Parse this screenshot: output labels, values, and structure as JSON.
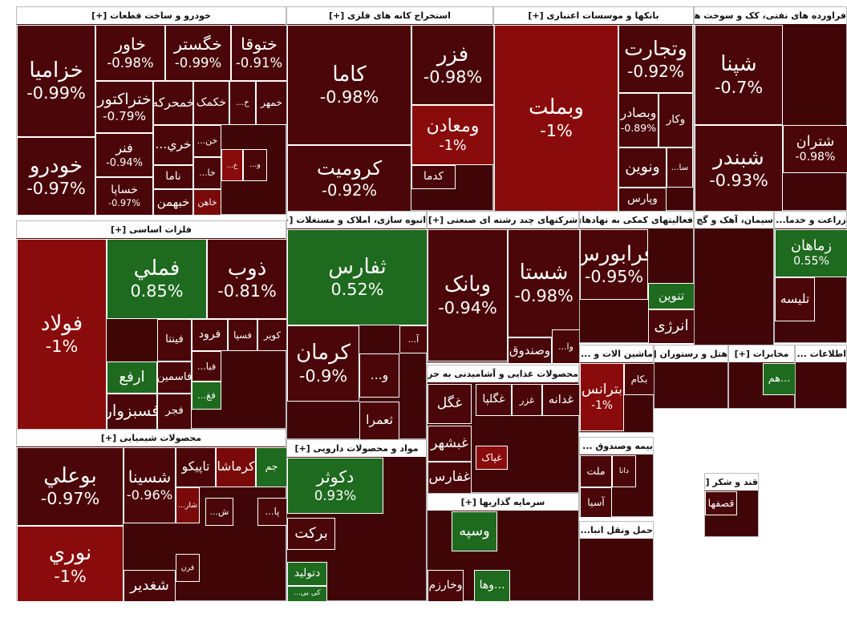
{
  "sectors": [
    {
      "title": "خودرو و ساخت قطعات [+]",
      "tiles": [
        {
          "name": "خزامیا",
          "change": "-0.99%",
          "color": "#4a0608"
        },
        {
          "name": "خودرو",
          "change": "-0.97%",
          "color": "#4a0608"
        },
        {
          "name": "خاور",
          "change": "-0.98%",
          "color": "#4a0608"
        },
        {
          "name": "خگستر",
          "change": "-0.99%",
          "color": "#4a0608"
        },
        {
          "name": "ختوقا",
          "change": "-0.91%",
          "color": "#4a0608"
        },
        {
          "name": "ختراکتور",
          "change": "-0.79%",
          "color": "#4a0608"
        },
        {
          "name": "خمحرکه",
          "color": "#4a0608"
        },
        {
          "name": "خکمک",
          "color": "#4a0608"
        },
        {
          "name": "خ...",
          "color": "#4a0608"
        },
        {
          "name": "خمهر",
          "color": "#4a0608"
        },
        {
          "name": "خري...",
          "color": "#4a0608"
        },
        {
          "name": "خن...",
          "color": "#4a0608"
        },
        {
          "name": "فنر",
          "change": "-0.94%",
          "color": "#4a0608"
        },
        {
          "name": "خساپا",
          "change": "-0.97%",
          "color": "#4a0608"
        },
        {
          "name": "ناما",
          "color": "#4a0608"
        },
        {
          "name": "خبهمن",
          "color": "#4a0608"
        },
        {
          "name": "خا...",
          "color": "#4a0608"
        },
        {
          "name": "خاهن",
          "color": "#7a0a0a"
        },
        {
          "name": "خ...",
          "color": "#8a0b0b"
        },
        {
          "name": "و...",
          "color": "#4a0608"
        }
      ]
    },
    {
      "title": "استخراج کانه های فلزی [+]",
      "tiles": [
        {
          "name": "کاما",
          "change": "-0.98%",
          "color": "#4a0608"
        },
        {
          "name": "کرومیت",
          "change": "-0.92%",
          "color": "#4a0608"
        },
        {
          "name": "فزر",
          "change": "-0.98%",
          "color": "#4a0608"
        },
        {
          "name": "ومعادن",
          "change": "-1%",
          "color": "#8a0b0b"
        },
        {
          "name": "کدما",
          "color": "#4a0608"
        }
      ]
    },
    {
      "title": "بانکها و موسسات اعتباری [+]",
      "tiles": [
        {
          "name": "وبملت",
          "change": "-1%",
          "color": "#8a0b0b"
        },
        {
          "name": "وتجارت",
          "change": "-0.92%",
          "color": "#4a0608"
        },
        {
          "name": "وبصادر",
          "change": "-0.89%",
          "color": "#4a0608"
        },
        {
          "name": "وکار",
          "color": "#4a0608"
        },
        {
          "name": "ونوین",
          "color": "#4a0608"
        },
        {
          "name": "سا...",
          "color": "#4a0608"
        },
        {
          "name": "وپارس",
          "color": "#4a0608"
        }
      ]
    },
    {
      "title": "فراورده های نفتی، کک و سوخت هسته ای [+]",
      "tiles": [
        {
          "name": "شپنا",
          "change": "-0.7%",
          "color": "#4a0608"
        },
        {
          "name": "شبندر",
          "change": "-0.93%",
          "color": "#4a0608"
        },
        {
          "name": "شتران",
          "change": "-0.98%",
          "color": "#4a0608"
        }
      ]
    },
    {
      "title": "فلزات اساسی [+]",
      "tiles": [
        {
          "name": "فولاد",
          "change": "-1%",
          "color": "#8a0b0b"
        },
        {
          "name": "فملي",
          "change": "0.85%",
          "color": "#1e6a1e"
        },
        {
          "name": "ذوب",
          "change": "-0.81%",
          "color": "#4a0608"
        },
        {
          "name": "فينتا",
          "color": "#4a0608"
        },
        {
          "name": "فرود",
          "color": "#4a0608"
        },
        {
          "name": "فسپا",
          "color": "#4a0608"
        },
        {
          "name": "کویر",
          "color": "#4a0608"
        },
        {
          "name": "ارفع",
          "color": "#1e6a1e"
        },
        {
          "name": "فاسمین",
          "color": "#4a0608"
        },
        {
          "name": "فبا...",
          "color": "#4a0608"
        },
        {
          "name": "فسبزوار",
          "color": "#4a0608"
        },
        {
          "name": "فجر",
          "color": "#4a0608"
        },
        {
          "name": "فغ...",
          "color": "#1e6a1e"
        }
      ]
    },
    {
      "title": "انبوه سازی، املاک و مستغلات [+]",
      "tiles": [
        {
          "name": "ثفارس",
          "change": "0.52%",
          "color": "#1e6a1e"
        },
        {
          "name": "کرمان",
          "change": "-0.9%",
          "color": "#4a0608"
        },
        {
          "name": "آ...",
          "color": "#4a0608"
        },
        {
          "name": "و...",
          "color": "#4a0608"
        },
        {
          "name": "ثعمرا",
          "color": "#4a0608"
        }
      ]
    },
    {
      "title": "شرکتهای چند رشته ای صنعتی [+]",
      "tiles": [
        {
          "name": "وبانک",
          "change": "-0.94%",
          "color": "#4a0608"
        },
        {
          "name": "شستا",
          "change": "-0.98%",
          "color": "#4a0608"
        },
        {
          "name": "وصندوق",
          "color": "#4a0608"
        },
        {
          "name": "وا...",
          "color": "#4a0608"
        }
      ]
    },
    {
      "title": "فعالیتهای کمکی به نهادهای... [+]",
      "tiles": [
        {
          "name": "فرابورس",
          "change": "-0.95%",
          "color": "#4a0608"
        },
        {
          "name": "تنوین",
          "color": "#1e6a1e"
        },
        {
          "name": "انرژی",
          "color": "#4a0608"
        }
      ]
    },
    {
      "title": "سیمان، آهک و گچ [+]",
      "tiles": []
    },
    {
      "title": "زراعت و خدما... [+]",
      "tiles": [
        {
          "name": "زماهان",
          "change": "0.55%",
          "color": "#1e6a1e"
        },
        {
          "name": "تلیسه",
          "color": "#4a0608"
        }
      ]
    },
    {
      "title": "محصولات شیمیایی [+]",
      "tiles": [
        {
          "name": "بوعلي",
          "change": "-0.97%",
          "color": "#4a0608"
        },
        {
          "name": "نوري",
          "change": "-1%",
          "color": "#8a0b0b"
        },
        {
          "name": "شسینا",
          "change": "-0.96%",
          "color": "#4a0608"
        },
        {
          "name": "تاپیکو",
          "color": "#4a0608"
        },
        {
          "name": "کرماشا",
          "color": "#7a0a0a"
        },
        {
          "name": "جم",
          "color": "#1e6a1e"
        },
        {
          "name": "شار...",
          "color": "#7a0a0a"
        },
        {
          "name": "ش...",
          "color": "#4a0608"
        },
        {
          "name": "پا...",
          "color": "#4a0608"
        },
        {
          "name": "قرن",
          "color": "#4a0608"
        },
        {
          "name": "شغدير",
          "color": "#4a0608"
        }
      ]
    },
    {
      "title": "مواد و محصولات دارویی [+]",
      "tiles": [
        {
          "name": "دکوثر",
          "change": "0.93%",
          "color": "#1e6a1e"
        },
        {
          "name": "برکت",
          "color": "#4a0608"
        },
        {
          "name": "دتولید",
          "color": "#1e6a1e"
        },
        {
          "name": "کی بی...",
          "color": "#1e6a1e"
        }
      ]
    },
    {
      "title": "محصولات غذایی و آشامیدنی به جز ... [+]",
      "tiles": [
        {
          "name": "غگل",
          "color": "#4a0608"
        },
        {
          "name": "غبشهر",
          "color": "#4a0608"
        },
        {
          "name": "غفارس",
          "color": "#4a0608"
        },
        {
          "name": "غدانه",
          "color": "#4a0608"
        },
        {
          "name": "غزر",
          "color": "#4a0608"
        },
        {
          "name": "غگلپا",
          "color": "#4a0608"
        },
        {
          "name": "غپاک",
          "color": "#8a0b0b"
        }
      ]
    },
    {
      "title": "سرمایه گذاریها [+]",
      "tiles": [
        {
          "name": "وسپه",
          "color": "#1e6a1e"
        },
        {
          "name": "وخارزم",
          "color": "#4a0608"
        },
        {
          "name": "...وها",
          "color": "#1e6a1e"
        }
      ]
    },
    {
      "title": "ماشین الات و ... [+]",
      "tiles": [
        {
          "name": "بترانس",
          "change": "-1%",
          "color": "#8a0b0b"
        },
        {
          "name": "بکام",
          "color": "#4a0608"
        }
      ]
    },
    {
      "title": "هتل و رستوران [+]",
      "tiles": []
    },
    {
      "title": "مخابرات [+]",
      "tiles": [
        {
          "name": "...هم",
          "color": "#1e6a1e"
        }
      ]
    },
    {
      "title": "اطلاعات ... [+]",
      "tiles": []
    },
    {
      "title": "بیمه وصندوق ... [+]",
      "tiles": [
        {
          "name": "ملت",
          "color": "#4a0608"
        },
        {
          "name": "دانا",
          "color": "#4a0608"
        },
        {
          "name": "آسیا",
          "color": "#4a0608"
        }
      ]
    },
    {
      "title": "حمل ونقل انبا... [+]",
      "tiles": []
    },
    {
      "title": "قند و شکر [+]",
      "tiles": [
        {
          "name": "قصفها",
          "color": "#4a0608"
        }
      ]
    }
  ]
}
